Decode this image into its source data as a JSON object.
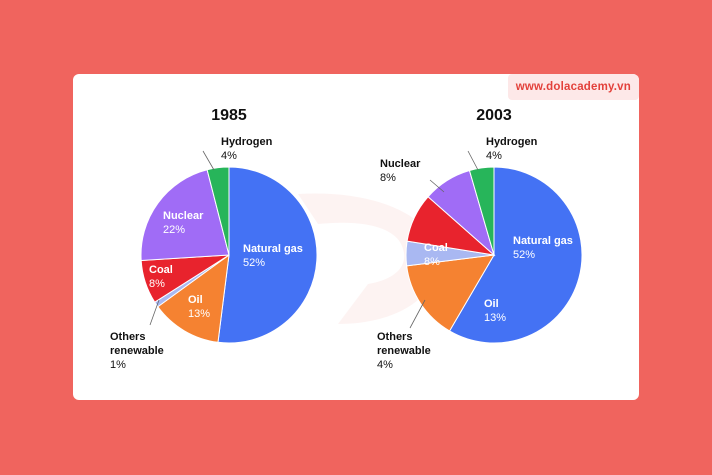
{
  "site": {
    "watermark_url": "www.dolacademy.vn"
  },
  "chart_data": [
    {
      "type": "pie",
      "title": "1985",
      "slices": [
        {
          "label": "Natural gas",
          "value": 52,
          "display": "52%",
          "color": "#4472f4"
        },
        {
          "label": "Oil",
          "value": 13,
          "display": "13%",
          "color": "#f58231"
        },
        {
          "label": "Others renewable",
          "value": 1,
          "display": "1%",
          "color": "#a9b8f2"
        },
        {
          "label": "Coal",
          "value": 8,
          "display": "8%",
          "color": "#e8232d"
        },
        {
          "label": "Nuclear",
          "value": 22,
          "display": "22%",
          "color": "#a06cf6"
        },
        {
          "label": "Hydrogen",
          "value": 4,
          "display": "4%",
          "color": "#27b55a"
        }
      ]
    },
    {
      "type": "pie",
      "title": "2003",
      "slices": [
        {
          "label": "Natural gas",
          "value": 52,
          "display": "52%",
          "color": "#4472f4"
        },
        {
          "label": "Oil",
          "value": 13,
          "display": "13%",
          "color": "#f58231"
        },
        {
          "label": "Others renewable",
          "value": 4,
          "display": "4%",
          "color": "#a9b8f2"
        },
        {
          "label": "Coal",
          "value": 8,
          "display": "8%",
          "color": "#e8232d"
        },
        {
          "label": "Nuclear",
          "value": 8,
          "display": "8%",
          "color": "#a06cf6"
        },
        {
          "label": "Hydrogen",
          "value": 4,
          "display": "4%",
          "color": "#27b55a"
        }
      ]
    }
  ]
}
